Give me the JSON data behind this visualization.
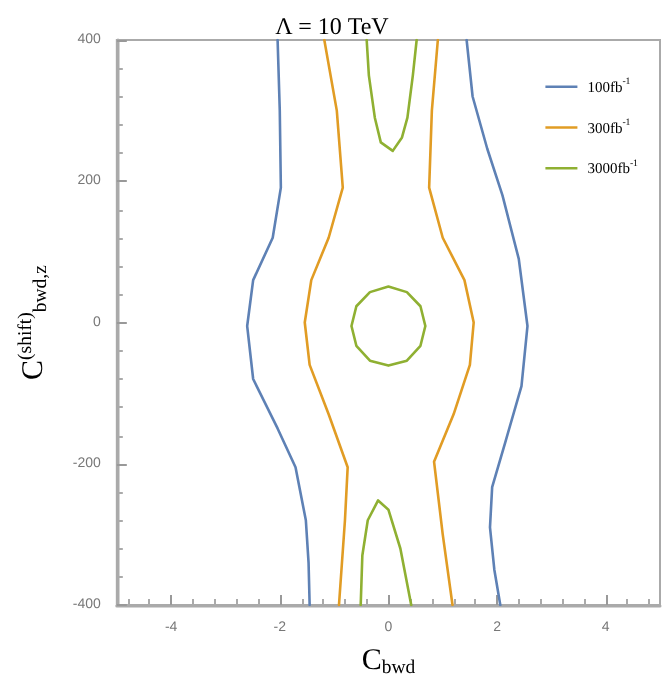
{
  "chart_data": {
    "type": "line",
    "title": "Λ = 10 TeV",
    "xlabel": "C$_{bwd}$",
    "ylabel": "C$^{(shift)}$$_{bwd,z}$",
    "xlim": [
      -5,
      5
    ],
    "xticks": [
      -4,
      -2,
      0,
      2,
      4
    ],
    "ylim": [
      -400,
      400
    ],
    "yticks": [
      -400,
      -200,
      0,
      200,
      400
    ],
    "grid": false,
    "legend": "top right",
    "marker": "none",
    "line_style": "solid",
    "series": [
      {
        "name": "100fb$^{-1}$",
        "color": "#5e81b5",
        "x": [
          -2.04,
          -2.0,
          -1.98,
          -2.13,
          -2.49,
          -2.6,
          -2.49,
          -2.04,
          -1.71,
          -1.52,
          -1.47,
          -1.45,
          null,
          1.44,
          1.55,
          1.82,
          2.1,
          2.4,
          2.56,
          2.45,
          2.15,
          1.91,
          1.87,
          1.95,
          2.06
        ],
        "values": [
          400,
          300,
          191,
          120,
          60,
          -5,
          -80,
          -150,
          -205,
          -280,
          -340,
          -400,
          null,
          400,
          320,
          246,
          180,
          90,
          -5,
          -90,
          -170,
          -233,
          -290,
          -350,
          -400
        ]
      },
      {
        "name": "300fb$^{-1}$",
        "color": "#e19c24",
        "x": [
          -1.18,
          -0.95,
          -0.84,
          -1.1,
          -1.42,
          -1.54,
          -1.45,
          -1.1,
          -0.75,
          -0.8,
          -0.91,
          null,
          0.91,
          0.8,
          0.75,
          1.0,
          1.4,
          1.57,
          1.5,
          1.2,
          0.84,
          1.0,
          1.18
        ],
        "values": [
          400,
          300,
          191,
          120,
          60,
          0,
          -60,
          -130,
          -205,
          -280,
          -400,
          null,
          400,
          300,
          191,
          120,
          60,
          0,
          -60,
          -130,
          -197,
          -300,
          -400
        ]
      },
      {
        "name": "3000fb$^{-1}$",
        "color": "#8fb032",
        "x": [
          -0.4,
          -0.36,
          -0.25,
          -0.14,
          0.08,
          0.25,
          0.35,
          0.45,
          0.52,
          null,
          -0.51,
          -0.48,
          -0.38,
          -0.19,
          0.0,
          0.22,
          0.42,
          null,
          -0.68,
          -0.59,
          -0.34,
          0.0,
          0.34,
          0.59,
          0.68,
          null,
          -0.68,
          -0.59,
          -0.34,
          0.0,
          0.34,
          0.59,
          0.68
        ],
        "values": [
          400,
          350,
          290,
          255,
          243,
          262,
          290,
          350,
          400,
          null,
          -400,
          -330,
          -280,
          -252,
          -265,
          -320,
          -400,
          null,
          -5,
          23,
          43,
          51,
          43,
          23,
          -5,
          null,
          -5,
          -33,
          -54,
          -61,
          -54,
          -33,
          -5
        ]
      }
    ]
  }
}
